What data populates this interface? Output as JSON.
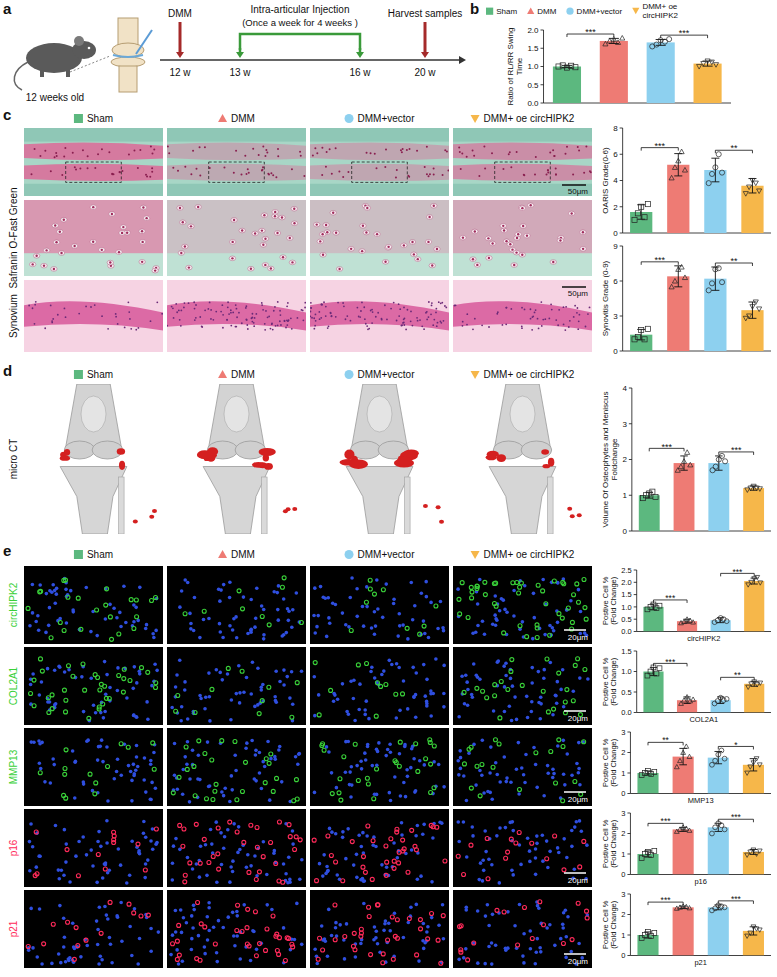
{
  "figure": {
    "panel_letters": [
      "a",
      "b",
      "c",
      "d",
      "e"
    ],
    "groups": [
      {
        "name": "Sham",
        "color": "#5cb87f",
        "marker": "square"
      },
      {
        "name": "DMM",
        "color": "#ee7b74",
        "marker": "triangle"
      },
      {
        "name": "DMM+vector",
        "color": "#8dd0ef",
        "marker": "circle"
      },
      {
        "name": "DMM+ oe circHIPK2",
        "color": "#f6b74a",
        "marker": "triangle-down"
      }
    ],
    "schematic": {
      "age": "12 weeks old",
      "surgery": "DMM",
      "injection": "Intra-articular Injection",
      "injection_note": "(Once a week for 4 weeks )",
      "harvest": "Harvest samples",
      "timepoints": [
        "12 w",
        "13 w",
        "16 w",
        "20 w"
      ]
    },
    "panel_c": {
      "row_labels": [
        "Safranin O-Fast Green",
        "Synovium"
      ],
      "scale_bar": "50μm"
    },
    "panel_d": {
      "row_label": "micro CT"
    },
    "panel_e": {
      "rows": [
        {
          "label": "circHIPK2",
          "color": "#39d039"
        },
        {
          "label": "COL2A1",
          "color": "#39d039"
        },
        {
          "label": "MMP13",
          "color": "#39d039"
        },
        {
          "label": "p16",
          "color": "#ff2a5a"
        },
        {
          "label": "p21",
          "color": "#ff2a5a"
        }
      ],
      "scale_bar": "20μm"
    }
  },
  "chart_data": [
    {
      "type": "bar",
      "y_label": "Ratio of RL/RR Swing Time",
      "categories": [
        null,
        null,
        null,
        null
      ],
      "values": [
        1.0,
        1.7,
        1.66,
        1.08
      ],
      "errors": [
        0.03,
        0.07,
        0.08,
        0.07
      ],
      "points": [
        [
          1.0,
          1.03,
          0.97,
          1.02,
          0.98
        ],
        [
          1.62,
          1.7,
          1.75,
          1.66,
          1.78
        ],
        [
          1.55,
          1.6,
          1.72,
          1.68,
          1.75
        ],
        [
          1.0,
          1.08,
          1.15,
          1.12,
          1.05
        ]
      ],
      "ylim": [
        0,
        2.0
      ],
      "yticks": [
        {
          "value": 0,
          "label": "0.0"
        },
        0.5,
        {
          "value": 1,
          "label": "1.0"
        },
        1.5,
        {
          "value": 2,
          "label": "2.0"
        }
      ],
      "significance": [
        {
          "pair": [
            0,
            1
          ],
          "label": "***"
        },
        {
          "pair": [
            2,
            3
          ],
          "label": "***"
        }
      ]
    },
    {
      "type": "bar",
      "y_label": "OARIS Grade(0-6)",
      "categories": [
        null,
        null,
        null,
        null
      ],
      "values": [
        1.6,
        5.2,
        4.8,
        3.6
      ],
      "errors": [
        0.55,
        0.85,
        0.9,
        0.55
      ],
      "points": [
        [
          1.0,
          1.5,
          2.0,
          1.2,
          2.2
        ],
        [
          4.2,
          5.0,
          5.5,
          6.2,
          4.8
        ],
        [
          3.8,
          4.5,
          5.0,
          6.0,
          4.6
        ],
        [
          3.0,
          3.5,
          4.0,
          3.8,
          3.2
        ]
      ],
      "ylim": [
        0,
        8
      ],
      "yticks": [
        0,
        2,
        4,
        6,
        8
      ],
      "significance": [
        {
          "pair": [
            0,
            1
          ],
          "label": "***"
        },
        {
          "pair": [
            2,
            3
          ],
          "label": "**"
        }
      ]
    },
    {
      "type": "bar",
      "y_label": "Synovitis Grade (0-9)",
      "categories": [
        null,
        null,
        null,
        null
      ],
      "values": [
        1.4,
        6.4,
        6.2,
        3.5
      ],
      "errors": [
        0.45,
        0.9,
        1.0,
        0.7
      ],
      "points": [
        [
          1.0,
          1.2,
          1.8,
          1.0,
          1.9
        ],
        [
          5.5,
          6.0,
          7.0,
          7.2,
          6.3
        ],
        [
          5.2,
          5.8,
          7.0,
          7.1,
          5.9
        ],
        [
          2.8,
          3.0,
          3.8,
          4.2,
          3.6
        ]
      ],
      "ylim": [
        0,
        9
      ],
      "yticks": [
        0,
        3,
        6,
        9
      ],
      "significance": [
        {
          "pair": [
            0,
            1
          ],
          "label": "***"
        },
        {
          "pair": [
            2,
            3
          ],
          "label": "**"
        }
      ]
    },
    {
      "type": "bar",
      "y_label": "Volume Of Osteophytes and Meniscus Foldchange",
      "categories": [
        null,
        null,
        null,
        null
      ],
      "values": [
        1.0,
        1.9,
        1.9,
        1.2
      ],
      "errors": [
        0.08,
        0.2,
        0.2,
        0.06
      ],
      "points": [
        [
          0.92,
          1.0,
          1.05,
          1.1,
          0.95
        ],
        [
          1.7,
          1.8,
          1.95,
          2.2,
          1.85
        ],
        [
          1.7,
          1.8,
          2.0,
          2.1,
          1.95
        ],
        [
          1.15,
          1.2,
          1.25,
          1.2,
          1.18
        ]
      ],
      "ylim": [
        0,
        4
      ],
      "yticks": [
        0,
        1,
        2,
        3,
        4
      ],
      "significance": [
        {
          "pair": [
            0,
            1
          ],
          "label": "***"
        },
        {
          "pair": [
            2,
            3
          ],
          "label": "***"
        }
      ]
    },
    {
      "type": "bar",
      "y_label": "Postive Cell % (Fold Change)",
      "x_label": "circHIPK2",
      "categories": [
        null,
        null,
        null,
        null
      ],
      "values": [
        1.0,
        0.42,
        0.46,
        2.05
      ],
      "errors": [
        0.12,
        0.08,
        0.1,
        0.12
      ],
      "points": [
        [
          0.9,
          1.0,
          1.1,
          0.95,
          1.05
        ],
        [
          0.35,
          0.4,
          0.5,
          0.45,
          0.38
        ],
        [
          0.38,
          0.45,
          0.55,
          0.5,
          0.42
        ],
        [
          1.9,
          2.0,
          2.15,
          2.2,
          1.98
        ]
      ],
      "ylim": [
        0,
        2.5
      ],
      "yticks": [
        {
          "value": 0,
          "label": "0.0"
        },
        0.5,
        {
          "value": 1,
          "label": "1.0"
        },
        1.5,
        {
          "value": 2,
          "label": "2.0"
        },
        2.5
      ],
      "significance": [
        {
          "pair": [
            0,
            1
          ],
          "label": "***"
        },
        {
          "pair": [
            2,
            3
          ],
          "label": "***"
        }
      ]
    },
    {
      "type": "bar",
      "y_label": "Postive Cell % (Fold Change)",
      "x_label": "COL2A1",
      "categories": [
        null,
        null,
        null,
        null
      ],
      "values": [
        1.0,
        0.3,
        0.3,
        0.7
      ],
      "errors": [
        0.1,
        0.08,
        0.08,
        0.06
      ],
      "points": [
        [
          0.9,
          1.0,
          1.1,
          0.95,
          1.08
        ],
        [
          0.22,
          0.3,
          0.38,
          0.28,
          0.32
        ],
        [
          0.22,
          0.28,
          0.36,
          0.3,
          0.33
        ],
        [
          0.62,
          0.7,
          0.75,
          0.68,
          0.72
        ]
      ],
      "ylim": [
        0,
        1.5
      ],
      "yticks": [
        {
          "value": 0,
          "label": "0.0"
        },
        0.5,
        {
          "value": 1,
          "label": "1.0"
        },
        1.5
      ],
      "significance": [
        {
          "pair": [
            0,
            1
          ],
          "label": "***"
        },
        {
          "pair": [
            2,
            3
          ],
          "label": "**"
        }
      ]
    },
    {
      "type": "bar",
      "y_label": "Postive Cell % (Fold Change)",
      "x_label": "MMP13",
      "categories": [
        null,
        null,
        null,
        null
      ],
      "values": [
        1.0,
        1.8,
        1.75,
        1.4
      ],
      "errors": [
        0.1,
        0.4,
        0.3,
        0.3
      ],
      "points": [
        [
          0.9,
          1.0,
          1.1,
          0.95,
          1.05
        ],
        [
          1.3,
          1.6,
          2.0,
          2.3,
          1.8
        ],
        [
          1.4,
          1.6,
          1.9,
          2.1,
          1.7
        ],
        [
          1.0,
          1.3,
          1.5,
          1.7,
          1.4
        ]
      ],
      "ylim": [
        0,
        3
      ],
      "yticks": [
        0,
        1,
        2,
        3
      ],
      "significance": [
        {
          "pair": [
            0,
            1
          ],
          "label": "**"
        },
        {
          "pair": [
            2,
            3
          ],
          "label": "*"
        }
      ]
    },
    {
      "type": "bar",
      "y_label": "Postive Cell % (Fold Change)",
      "x_label": "p16",
      "categories": [
        null,
        null,
        null,
        null
      ],
      "values": [
        1.0,
        2.2,
        2.3,
        1.1
      ],
      "errors": [
        0.15,
        0.1,
        0.2,
        0.12
      ],
      "points": [
        [
          0.8,
          1.0,
          1.1,
          0.95,
          1.15
        ],
        [
          2.1,
          2.2,
          2.3,
          2.25,
          2.15
        ],
        [
          2.0,
          2.3,
          2.5,
          2.4,
          2.2
        ],
        [
          0.95,
          1.1,
          1.2,
          1.0,
          1.15
        ]
      ],
      "ylim": [
        0,
        3
      ],
      "yticks": [
        0,
        1,
        2,
        3
      ],
      "significance": [
        {
          "pair": [
            0,
            1
          ],
          "label": "***"
        },
        {
          "pair": [
            2,
            3
          ],
          "label": "***"
        }
      ]
    },
    {
      "type": "bar",
      "y_label": "Postive Cell % (Fold Change)",
      "x_label": "p21",
      "categories": [
        null,
        null,
        null,
        null
      ],
      "values": [
        1.0,
        2.35,
        2.35,
        1.2
      ],
      "errors": [
        0.15,
        0.06,
        0.12,
        0.2
      ],
      "points": [
        [
          0.85,
          1.0,
          1.15,
          0.95,
          1.1
        ],
        [
          2.3,
          2.35,
          2.4,
          2.38,
          2.32
        ],
        [
          2.2,
          2.3,
          2.45,
          2.4,
          2.35
        ],
        [
          0.95,
          1.1,
          1.4,
          1.3,
          1.25
        ]
      ],
      "ylim": [
        0,
        3
      ],
      "yticks": [
        0,
        1,
        2,
        3
      ],
      "significance": [
        {
          "pair": [
            0,
            1
          ],
          "label": "***"
        },
        {
          "pair": [
            2,
            3
          ],
          "label": "***"
        }
      ]
    }
  ]
}
